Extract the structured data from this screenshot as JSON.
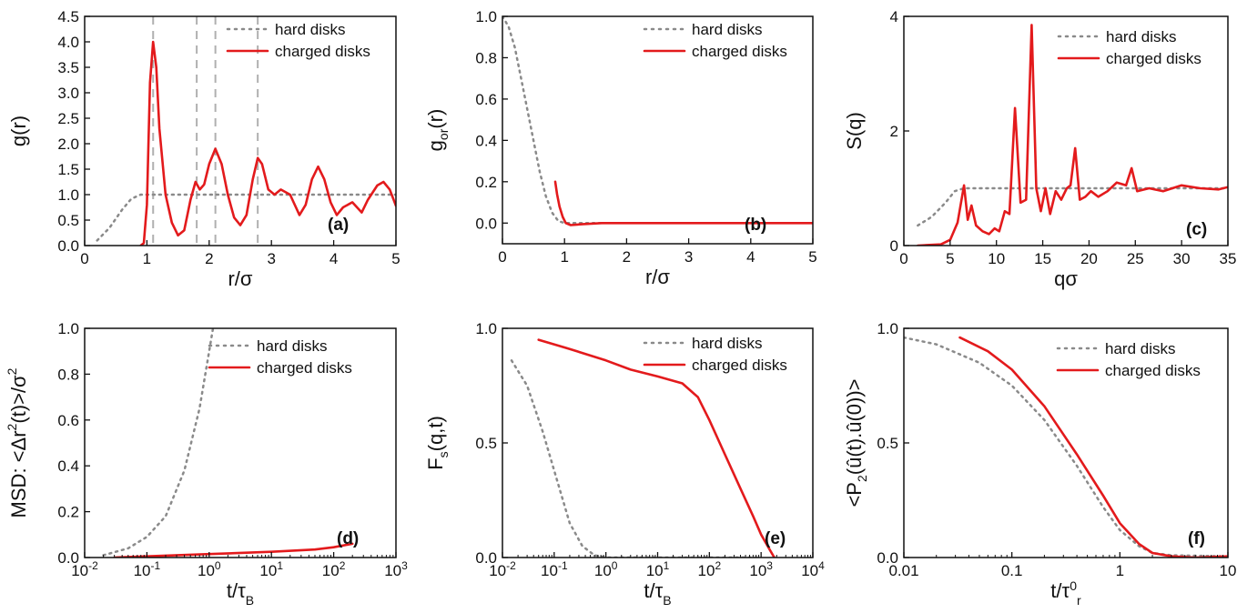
{
  "colors": {
    "hard": "#8a8a8a",
    "charged": "#e31a1c",
    "guide": "#b0b0b0",
    "axis": "#111111"
  },
  "chart_data": [
    {
      "panel": "a",
      "tag": "(a)",
      "type": "line",
      "xlabel": "r/σ",
      "ylabel": "g(r)",
      "xlim": [
        0,
        5
      ],
      "ylim": [
        0,
        4.5
      ],
      "xscale": "linear",
      "xticks": [
        0,
        1,
        2,
        3,
        4,
        5
      ],
      "xtick_labels": [
        "0",
        "1",
        "2",
        "3",
        "4",
        "5"
      ],
      "yticks": [
        0,
        0.5,
        1,
        1.5,
        2,
        2.5,
        3,
        3.5,
        4,
        4.5
      ],
      "ytick_labels": [
        "0.0",
        "0.5",
        "1.0",
        "1.5",
        "2.0",
        "2.5",
        "3.0",
        "3.5",
        "4.0",
        "4.5"
      ],
      "guides_x": [
        1.1,
        1.8,
        2.1,
        2.78
      ],
      "series": [
        {
          "name": "hard disks",
          "style": "dotted",
          "points": [
            [
              0.2,
              0.1
            ],
            [
              0.4,
              0.35
            ],
            [
              0.6,
              0.7
            ],
            [
              0.75,
              0.92
            ],
            [
              0.9,
              1.0
            ],
            [
              1.5,
              1.0
            ],
            [
              2.5,
              1.0
            ],
            [
              3.5,
              1.0
            ],
            [
              4.5,
              1.0
            ],
            [
              5.0,
              1.0
            ]
          ]
        },
        {
          "name": "charged disks",
          "style": "solid",
          "points": [
            [
              0.9,
              0.0
            ],
            [
              0.95,
              0.05
            ],
            [
              1.0,
              0.8
            ],
            [
              1.05,
              3.2
            ],
            [
              1.1,
              4.0
            ],
            [
              1.15,
              3.5
            ],
            [
              1.2,
              2.3
            ],
            [
              1.3,
              1.0
            ],
            [
              1.4,
              0.45
            ],
            [
              1.5,
              0.2
            ],
            [
              1.6,
              0.3
            ],
            [
              1.7,
              0.9
            ],
            [
              1.78,
              1.25
            ],
            [
              1.85,
              1.1
            ],
            [
              1.92,
              1.2
            ],
            [
              2.0,
              1.6
            ],
            [
              2.1,
              1.9
            ],
            [
              2.2,
              1.6
            ],
            [
              2.3,
              1.0
            ],
            [
              2.4,
              0.55
            ],
            [
              2.5,
              0.4
            ],
            [
              2.6,
              0.6
            ],
            [
              2.7,
              1.3
            ],
            [
              2.78,
              1.72
            ],
            [
              2.85,
              1.6
            ],
            [
              2.95,
              1.1
            ],
            [
              3.05,
              1.0
            ],
            [
              3.15,
              1.1
            ],
            [
              3.3,
              1.0
            ],
            [
              3.45,
              0.6
            ],
            [
              3.55,
              0.8
            ],
            [
              3.65,
              1.3
            ],
            [
              3.75,
              1.55
            ],
            [
              3.85,
              1.3
            ],
            [
              3.95,
              0.85
            ],
            [
              4.05,
              0.6
            ],
            [
              4.15,
              0.75
            ],
            [
              4.3,
              0.85
            ],
            [
              4.45,
              0.65
            ],
            [
              4.55,
              0.9
            ],
            [
              4.7,
              1.18
            ],
            [
              4.8,
              1.25
            ],
            [
              4.9,
              1.1
            ],
            [
              5.0,
              0.78
            ]
          ]
        }
      ]
    },
    {
      "panel": "b",
      "tag": "(b)",
      "type": "line",
      "xlabel": "r/σ",
      "ylabel": "g_or(r)",
      "xlim": [
        0,
        5
      ],
      "ylim": [
        -0.1,
        1.0
      ],
      "xscale": "linear",
      "xticks": [
        0,
        1,
        2,
        3,
        4,
        5
      ],
      "xtick_labels": [
        "0",
        "1",
        "2",
        "3",
        "4",
        "5"
      ],
      "yticks": [
        0,
        0.2,
        0.4,
        0.6,
        0.8,
        1.0
      ],
      "ytick_labels": [
        "0.0",
        "0.2",
        "0.4",
        "0.6",
        "0.8",
        "1.0"
      ],
      "series": [
        {
          "name": "hard disks",
          "style": "dotted",
          "points": [
            [
              0.0,
              1.0
            ],
            [
              0.1,
              0.95
            ],
            [
              0.2,
              0.85
            ],
            [
              0.3,
              0.7
            ],
            [
              0.4,
              0.55
            ],
            [
              0.5,
              0.4
            ],
            [
              0.6,
              0.25
            ],
            [
              0.7,
              0.13
            ],
            [
              0.8,
              0.05
            ],
            [
              0.9,
              0.01
            ],
            [
              1.0,
              0.0
            ],
            [
              2.0,
              0.0
            ],
            [
              5.0,
              0.0
            ]
          ]
        },
        {
          "name": "charged disks",
          "style": "solid",
          "points": [
            [
              0.85,
              0.2
            ],
            [
              0.88,
              0.14
            ],
            [
              0.92,
              0.08
            ],
            [
              0.97,
              0.03
            ],
            [
              1.02,
              0.0
            ],
            [
              1.1,
              -0.01
            ],
            [
              1.3,
              -0.005
            ],
            [
              1.6,
              0.0
            ],
            [
              2.5,
              0.0
            ],
            [
              5.0,
              0.0
            ]
          ]
        }
      ]
    },
    {
      "panel": "c",
      "tag": "(c)",
      "type": "line",
      "xlabel": "qσ",
      "ylabel": "S(q)",
      "xlim": [
        0,
        35
      ],
      "ylim": [
        0,
        4
      ],
      "xscale": "linear",
      "xticks": [
        0,
        5,
        10,
        15,
        20,
        25,
        30,
        35
      ],
      "xtick_labels": [
        "0",
        "5",
        "10",
        "15",
        "20",
        "25",
        "30",
        "35"
      ],
      "yticks": [
        0,
        2,
        4
      ],
      "ytick_labels": [
        "0",
        "2",
        "4"
      ],
      "series": [
        {
          "name": "hard disks",
          "style": "dotted",
          "points": [
            [
              1.5,
              0.35
            ],
            [
              3,
              0.5
            ],
            [
              4.5,
              0.75
            ],
            [
              5.5,
              0.95
            ],
            [
              6.5,
              1.0
            ],
            [
              10,
              1.0
            ],
            [
              20,
              1.0
            ],
            [
              35,
              1.0
            ]
          ]
        },
        {
          "name": "charged disks",
          "style": "solid",
          "points": [
            [
              1.5,
              0.0
            ],
            [
              4,
              0.02
            ],
            [
              5,
              0.1
            ],
            [
              5.8,
              0.4
            ],
            [
              6.5,
              1.05
            ],
            [
              6.9,
              0.45
            ],
            [
              7.3,
              0.7
            ],
            [
              7.8,
              0.35
            ],
            [
              8.5,
              0.25
            ],
            [
              9.2,
              0.2
            ],
            [
              9.8,
              0.3
            ],
            [
              10.3,
              0.25
            ],
            [
              10.9,
              0.6
            ],
            [
              11.4,
              0.55
            ],
            [
              12.0,
              2.4
            ],
            [
              12.6,
              0.75
            ],
            [
              13.2,
              0.8
            ],
            [
              13.8,
              3.85
            ],
            [
              14.3,
              1.0
            ],
            [
              14.8,
              0.6
            ],
            [
              15.3,
              1.0
            ],
            [
              15.8,
              0.55
            ],
            [
              16.4,
              0.95
            ],
            [
              17.0,
              0.8
            ],
            [
              17.6,
              1.0
            ],
            [
              18.0,
              1.05
            ],
            [
              18.5,
              1.7
            ],
            [
              19.0,
              0.8
            ],
            [
              19.6,
              0.85
            ],
            [
              20.2,
              0.95
            ],
            [
              21.0,
              0.85
            ],
            [
              22.0,
              0.95
            ],
            [
              23.0,
              1.1
            ],
            [
              24.0,
              1.05
            ],
            [
              24.6,
              1.35
            ],
            [
              25.2,
              0.95
            ],
            [
              26.5,
              1.0
            ],
            [
              28,
              0.95
            ],
            [
              30,
              1.05
            ],
            [
              32,
              1.0
            ],
            [
              34,
              0.98
            ],
            [
              35,
              1.02
            ]
          ]
        }
      ]
    },
    {
      "panel": "d",
      "tag": "(d)",
      "type": "line",
      "xlabel": "t/τ_B",
      "ylabel": "MSD: <Δr²(t)>/σ²",
      "xlim": [
        0.01,
        1000
      ],
      "ylim": [
        0,
        1.0
      ],
      "xscale": "log",
      "xticks": [
        0.01,
        0.1,
        1,
        10,
        100,
        1000
      ],
      "xtick_labels": [
        "10^-2",
        "10^-1",
        "10^0",
        "10^1",
        "10^2",
        "10^3"
      ],
      "yticks": [
        0,
        0.2,
        0.4,
        0.6,
        0.8,
        1.0
      ],
      "ytick_labels": [
        "0.0",
        "0.2",
        "0.4",
        "0.6",
        "0.8",
        "1.0"
      ],
      "series": [
        {
          "name": "hard disks",
          "style": "dotted",
          "points": [
            [
              0.02,
              0.01
            ],
            [
              0.05,
              0.04
            ],
            [
              0.1,
              0.09
            ],
            [
              0.2,
              0.18
            ],
            [
              0.4,
              0.38
            ],
            [
              0.7,
              0.65
            ],
            [
              1.0,
              0.9
            ],
            [
              1.15,
              1.0
            ]
          ]
        },
        {
          "name": "charged disks",
          "style": "solid",
          "points": [
            [
              0.03,
              0.0
            ],
            [
              0.1,
              0.005
            ],
            [
              1,
              0.015
            ],
            [
              10,
              0.025
            ],
            [
              50,
              0.035
            ],
            [
              100,
              0.045
            ],
            [
              200,
              0.06
            ]
          ]
        }
      ]
    },
    {
      "panel": "e",
      "tag": "(e)",
      "type": "line",
      "xlabel": "t/τ_B",
      "ylabel": "F_s(q,t)",
      "xlim": [
        0.01,
        10000
      ],
      "ylim": [
        0,
        1.0
      ],
      "xscale": "log",
      "xticks": [
        0.01,
        0.1,
        1,
        10,
        100,
        1000,
        10000
      ],
      "xtick_labels": [
        "10^-2",
        "10^-1",
        "10^0",
        "10^1",
        "10^2",
        "10^3",
        "10^4"
      ],
      "yticks": [
        0,
        0.5,
        1.0
      ],
      "ytick_labels": [
        "0.0",
        "0.5",
        "1.0"
      ],
      "series": [
        {
          "name": "hard disks",
          "style": "dotted",
          "points": [
            [
              0.015,
              0.86
            ],
            [
              0.03,
              0.75
            ],
            [
              0.06,
              0.55
            ],
            [
              0.1,
              0.38
            ],
            [
              0.2,
              0.15
            ],
            [
              0.35,
              0.05
            ],
            [
              0.6,
              0.01
            ],
            [
              1,
              0.0
            ],
            [
              100,
              0.0
            ],
            [
              1000,
              0.0
            ]
          ]
        },
        {
          "name": "charged disks",
          "style": "solid",
          "points": [
            [
              0.05,
              0.95
            ],
            [
              0.2,
              0.91
            ],
            [
              1,
              0.86
            ],
            [
              3,
              0.82
            ],
            [
              10,
              0.79
            ],
            [
              30,
              0.76
            ],
            [
              60,
              0.7
            ],
            [
              100,
              0.6
            ],
            [
              200,
              0.45
            ],
            [
              400,
              0.3
            ],
            [
              700,
              0.18
            ],
            [
              1000,
              0.1
            ],
            [
              1500,
              0.03
            ],
            [
              1800,
              0.0
            ]
          ]
        }
      ]
    },
    {
      "panel": "f",
      "tag": "(f)",
      "type": "line",
      "xlabel": "t/τ⁰_r",
      "ylabel": "<P₂(û(t).û(0))>",
      "xlim": [
        0.01,
        10
      ],
      "ylim": [
        0,
        1.0
      ],
      "xscale": "log",
      "xticks": [
        0.01,
        0.1,
        1,
        10
      ],
      "xtick_labels": [
        "0.01",
        "0.1",
        "1",
        "10"
      ],
      "yticks": [
        0,
        0.5,
        1.0
      ],
      "ytick_labels": [
        "0.0",
        "0.5",
        "1.0"
      ],
      "series": [
        {
          "name": "hard disks",
          "style": "dotted",
          "points": [
            [
              0.01,
              0.96
            ],
            [
              0.02,
              0.93
            ],
            [
              0.05,
              0.85
            ],
            [
              0.1,
              0.75
            ],
            [
              0.2,
              0.6
            ],
            [
              0.4,
              0.4
            ],
            [
              0.7,
              0.22
            ],
            [
              1.0,
              0.12
            ],
            [
              1.5,
              0.05
            ],
            [
              2,
              0.02
            ],
            [
              3,
              0.01
            ],
            [
              10,
              0.005
            ]
          ]
        },
        {
          "name": "charged disks",
          "style": "solid",
          "points": [
            [
              0.033,
              0.96
            ],
            [
              0.06,
              0.9
            ],
            [
              0.1,
              0.82
            ],
            [
              0.2,
              0.66
            ],
            [
              0.4,
              0.45
            ],
            [
              0.7,
              0.27
            ],
            [
              1.0,
              0.15
            ],
            [
              1.5,
              0.06
            ],
            [
              2,
              0.02
            ],
            [
              3,
              0.005
            ],
            [
              5,
              0.0
            ],
            [
              10,
              0.005
            ]
          ]
        }
      ]
    }
  ]
}
